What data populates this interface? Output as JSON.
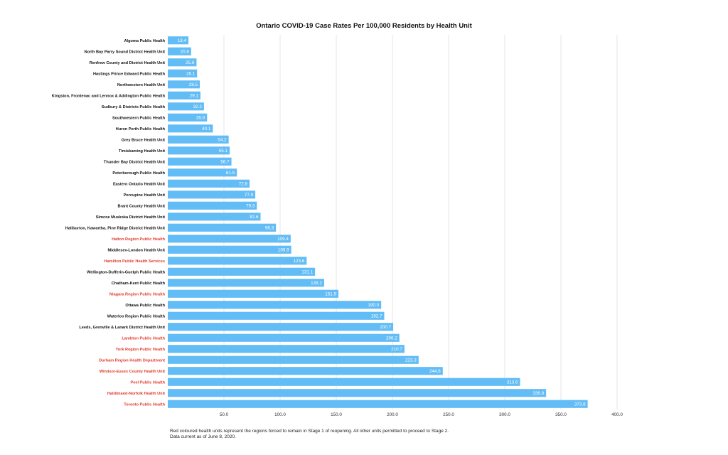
{
  "chart_data": {
    "type": "bar",
    "orientation": "horizontal",
    "title": "Ontario COVID-19 Case Rates Per 100,000 Residents by Health Unit",
    "xlim": [
      0,
      400
    ],
    "xticks": [
      50,
      100,
      150,
      200,
      250,
      300,
      350,
      400
    ],
    "xtick_labels": [
      "50.0",
      "100.0",
      "150.0",
      "200.0",
      "250.0",
      "300.0",
      "350.0",
      "400.0"
    ],
    "grid": "vertical",
    "bar_color": "#62bcf5",
    "highlight_label_color": "#e03a2a",
    "default_label_color": "#111111",
    "categories": [
      "Algoma Public Health",
      "North Bay Parry Sound District Health Unit",
      "Renfrew County and District Health Unit",
      "Hastings Prince Edward Public Health",
      "Northwestern Health Unit",
      "Kingston, Frontenac and Lennox & Addington Public Health",
      "Sudbury & Districts Public Health",
      "Southwestern Public Health",
      "Huron Perth Public Health",
      "Grey Bruce Health Unit",
      "Timiskaming Health Unit",
      "Thunder Bay District Health Unit",
      "Peterborough Public Health",
      "Eastern Ontario Health Unit",
      "Porcupine Health Unit",
      "Brant County Health Unit",
      "Simcoe Muskoka District Health Unit",
      "Haliburton, Kawartha, Pine Ridge District Health Unit",
      "Halton Region Public Health",
      "Middlesex-London Health Unit",
      "Hamilton Public Health Services",
      "Wellington-Dufferin-Guelph Public Health",
      "Chatham-Kent Public Health",
      "Niagara Region Public Health",
      "Ottawa Public Health",
      "Waterloo Region Public Health",
      "Leeds, Grenville & Lanark District Health Unit",
      "Lambton Public Health",
      "York Region Public Health",
      "Durham Region Health Department",
      "Windsor-Essex County Health Unit",
      "Peel Public Health",
      "Haldimand-Norfolk Health Unit",
      "Toronto Public Health"
    ],
    "values": [
      18.4,
      20.8,
      25.6,
      26.1,
      28.5,
      29.1,
      32.2,
      35.0,
      40.1,
      54.2,
      55.1,
      56.7,
      61.5,
      72.8,
      77.9,
      79.3,
      82.6,
      96.3,
      109.4,
      109.9,
      123.6,
      131.1,
      139.2,
      151.9,
      190.0,
      192.7,
      200.7,
      206.2,
      210.7,
      223.3,
      244.8,
      313.6,
      336.8,
      373.8
    ],
    "value_labels": [
      "18.4",
      "20.8",
      "25.6",
      "26.1",
      "28.5",
      "29.1",
      "32.2",
      "35.0",
      "40.1",
      "54.2",
      "55.1",
      "56.7",
      "61.5",
      "72.8",
      "77.9",
      "79.3",
      "82.6",
      "96.3",
      "109.4",
      "109.9",
      "123.6",
      "131.1",
      "139.2",
      "151.9",
      "190.0",
      "192.7",
      "200.7",
      "206.2",
      "210.7",
      "223.3",
      "244.8",
      "313.6",
      "336.8",
      "373.8"
    ],
    "highlighted": [
      false,
      false,
      false,
      false,
      false,
      false,
      false,
      false,
      false,
      false,
      false,
      false,
      false,
      false,
      false,
      false,
      false,
      false,
      true,
      false,
      true,
      false,
      false,
      true,
      false,
      false,
      false,
      true,
      true,
      true,
      true,
      true,
      true,
      true
    ]
  },
  "footnote": {
    "line1": "Red coloured health units represent the regions forced to remain in Stage 1 of reopening. All other units permitted to proceed to Stage 2.",
    "line2": "Data current as of June 8, 2020."
  }
}
